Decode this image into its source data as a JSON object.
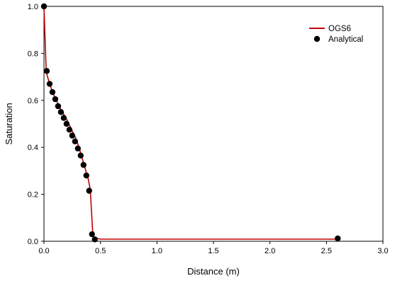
{
  "chart_data": {
    "type": "line",
    "xlabel": "Distance (m)",
    "ylabel": "Saturation",
    "xlim": [
      0,
      3.0
    ],
    "ylim": [
      0,
      1.0
    ],
    "xticks": [
      "0.0",
      "0.5",
      "1.0",
      "1.5",
      "2.0",
      "2.5",
      "3.0"
    ],
    "yticks": [
      "0.0",
      "0.2",
      "0.4",
      "0.6",
      "0.8",
      "1.0"
    ],
    "grid": false,
    "legend_position": "top-right",
    "series": [
      {
        "name": "OGS6",
        "style": "line",
        "color": "#c00000",
        "x": [
          0.0,
          0.02,
          0.05,
          0.08,
          0.11,
          0.14,
          0.17,
          0.2,
          0.22,
          0.25,
          0.28,
          0.31,
          0.34,
          0.37,
          0.39,
          0.41,
          0.43,
          0.445,
          0.46,
          0.47,
          0.5,
          2.6
        ],
        "y": [
          1.0,
          0.72,
          0.67,
          0.63,
          0.6,
          0.57,
          0.545,
          0.52,
          0.5,
          0.47,
          0.44,
          0.4,
          0.35,
          0.3,
          0.27,
          0.22,
          0.05,
          0.005,
          0.008,
          0.012,
          0.009,
          0.009
        ]
      },
      {
        "name": "Analytical",
        "style": "markers",
        "color": "#000000",
        "x": [
          0.0,
          0.025,
          0.05,
          0.075,
          0.1,
          0.125,
          0.15,
          0.175,
          0.2,
          0.225,
          0.25,
          0.275,
          0.3,
          0.325,
          0.35,
          0.375,
          0.4,
          0.425,
          0.45,
          2.6
        ],
        "y": [
          1.0,
          0.725,
          0.67,
          0.635,
          0.605,
          0.575,
          0.55,
          0.525,
          0.5,
          0.475,
          0.45,
          0.425,
          0.395,
          0.365,
          0.325,
          0.28,
          0.215,
          0.03,
          0.008,
          0.012
        ]
      }
    ]
  }
}
